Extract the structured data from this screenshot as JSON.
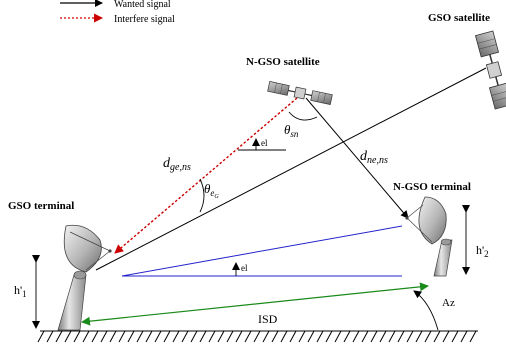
{
  "legend": {
    "wanted": "Wanted signal",
    "interfere": "Interfere signal"
  },
  "labels": {
    "gso_satellite": "GSO satellite",
    "ngso_satellite": "N-GSO satellite",
    "gso_terminal": "GSO terminal",
    "ngso_terminal": "N-GSO terminal",
    "theta_sn_base": "θ",
    "theta_sn_sub": "sn",
    "d_ge_base": "d",
    "d_ge_sub": "ge,ns",
    "d_ne_base": "d",
    "d_ne_sub": "ne,ns",
    "theta_e_base": "θ",
    "theta_e_sub": "e",
    "theta_e_subsub": "G",
    "el_upper": "el",
    "el_lower": "el",
    "h1": "h'",
    "h1_sub": "1",
    "h2": "h'",
    "h2_sub": "2",
    "isd": "ISD",
    "az": "Az"
  },
  "colors": {
    "wanted": "#000000",
    "interfere": "#cc0000",
    "baseline": "#2222cc",
    "isd": "#1a8a1a",
    "dish": "#b8b8b8"
  }
}
